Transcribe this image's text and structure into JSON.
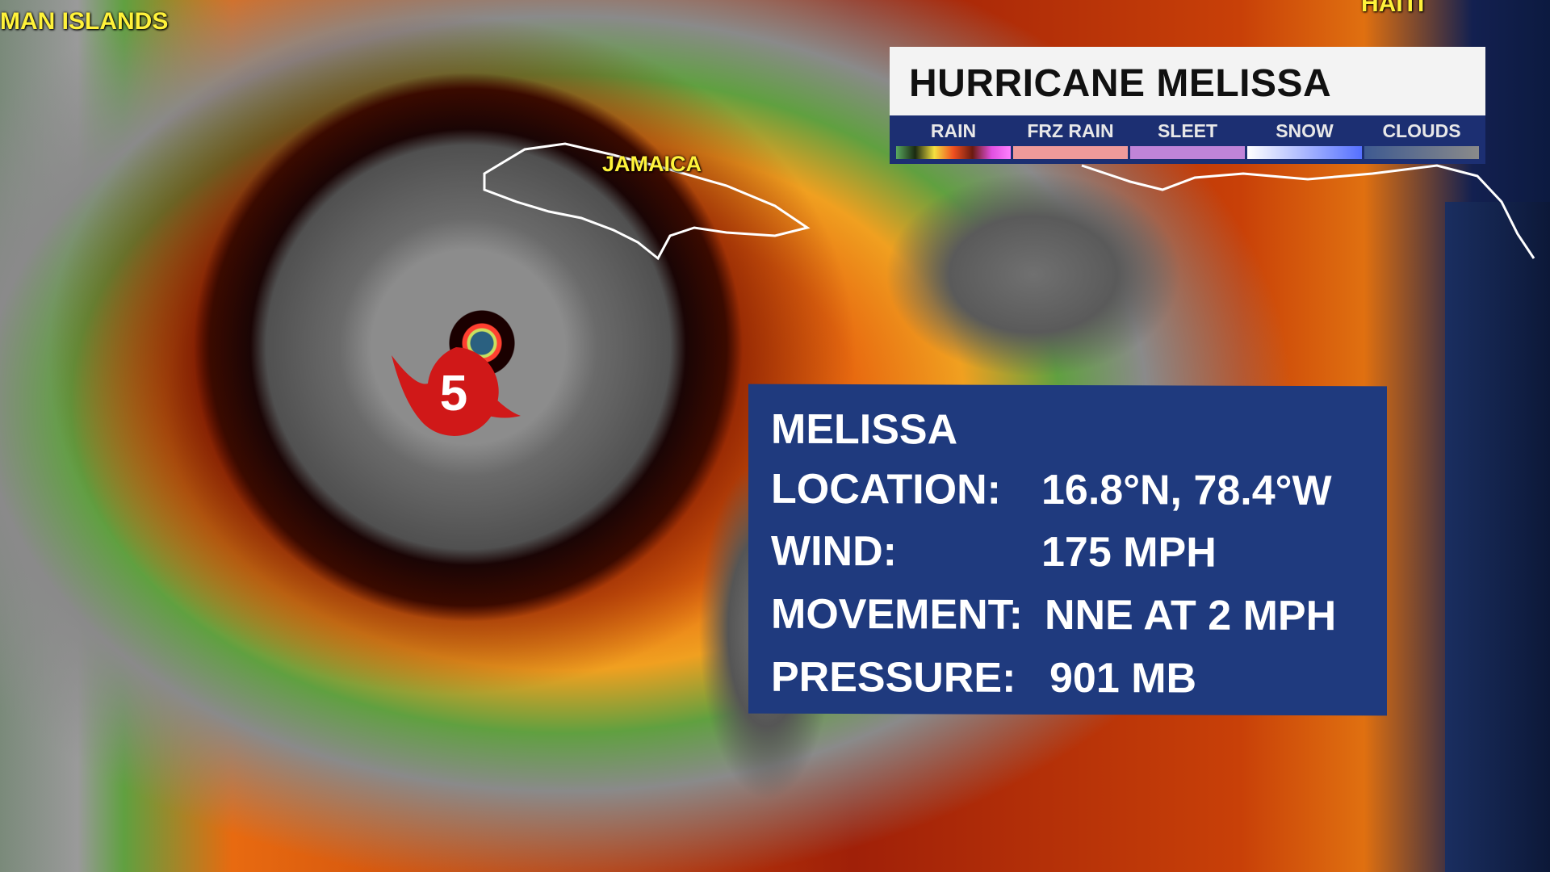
{
  "map_labels": {
    "cayman": "MAN ISLANDS",
    "jamaica": "JAMAICA",
    "haiti": "HAITI"
  },
  "title": "HURRICANE MELISSA",
  "legend": [
    {
      "label": "RAIN",
      "gradient": [
        "#5aa860",
        "#1a2a10",
        "#f4e040",
        "#f05020",
        "#6a1a10",
        "#e050e0",
        "#ff80ff"
      ]
    },
    {
      "label": "FRZ RAIN",
      "gradient": [
        "#ef9a9a",
        "#ef9a9a"
      ]
    },
    {
      "label": "SLEET",
      "gradient": [
        "#c084d8",
        "#c084d8"
      ]
    },
    {
      "label": "SNOW",
      "gradient": [
        "#ffffff",
        "#5570ff"
      ]
    },
    {
      "label": "CLOUDS",
      "gradient": [
        "#3e5a90",
        "#8a8a8a"
      ]
    }
  ],
  "storm": {
    "category": "5",
    "color": "#d01818"
  },
  "info": {
    "name": "MELISSA",
    "rows": [
      {
        "label": "LOCATION:",
        "value": "16.8°N, 78.4°W"
      },
      {
        "label": "WIND:",
        "value": "175 MPH"
      },
      {
        "label": "MOVEMENT:",
        "value": "NNE AT 2 MPH"
      },
      {
        "label": "PRESSURE:",
        "value": "901 MB"
      }
    ]
  },
  "colors": {
    "panel_blue": "#1f3a7e",
    "legend_blue": "#1c2f72",
    "label_yellow": "#fff23a"
  }
}
